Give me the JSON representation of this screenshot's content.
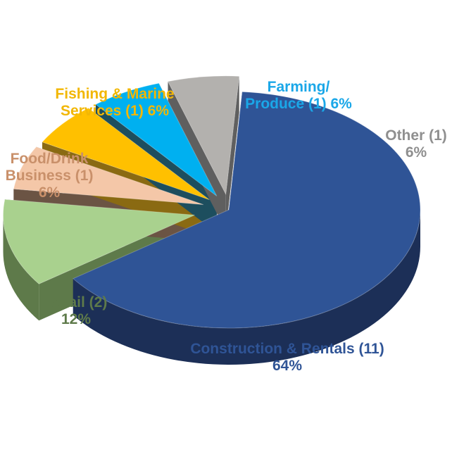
{
  "chart_data": {
    "type": "pie",
    "style": "3d-exploded",
    "legend": "none",
    "slices": [
      {
        "name": "Construction & Rentals",
        "count": 11,
        "value": 64,
        "label_lines": [
          "Construction & Rentals (11)",
          "64%"
        ],
        "top_color": "#2f5496",
        "side_color": "#1c2f57",
        "label_color": "#2f5496"
      },
      {
        "name": "Retail",
        "count": 2,
        "value": 12,
        "label_lines": [
          "Retail (2)",
          "12%"
        ],
        "top_color": "#a9d18e",
        "side_color": "#5e7a4a",
        "label_color": "#5e7a4a"
      },
      {
        "name": "Food/Drink Business",
        "count": 1,
        "value": 6,
        "label_lines": [
          "Food/Drink",
          "Business (1)",
          "6%"
        ],
        "top_color": "#f4c7a8",
        "side_color": "#6b5444",
        "label_color": "#c9906a"
      },
      {
        "name": "Fishing & Marine Services",
        "count": 1,
        "value": 6,
        "label_lines": [
          "Fishing & Marine",
          "Services (1) 6%"
        ],
        "top_color": "#ffc000",
        "side_color": "#8a6a12",
        "label_color": "#f2b705"
      },
      {
        "name": "Farming/Produce",
        "count": 1,
        "value": 6,
        "label_lines": [
          "Farming/",
          "Produce (1) 6%"
        ],
        "top_color": "#00b0f0",
        "side_color": "#1d4e5e",
        "label_color": "#1aa7e8"
      },
      {
        "name": "Other",
        "count": 1,
        "value": 6,
        "label_lines": [
          "Other (1)",
          "6%"
        ],
        "top_color": "#b3b1ae",
        "side_color": "#5f5f5f",
        "label_color": "#8f8f8f"
      }
    ]
  }
}
